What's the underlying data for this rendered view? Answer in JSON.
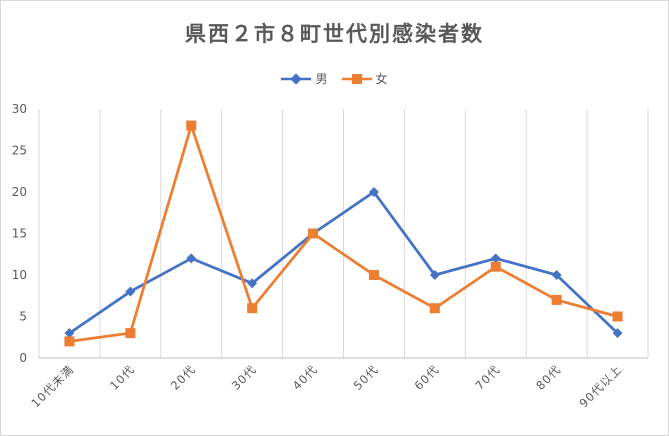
{
  "chart_data": {
    "type": "line",
    "title": "県西２市８町世代別感染者数",
    "categories": [
      "10代未満",
      "10代",
      "20代",
      "30代",
      "40代",
      "50代",
      "60代",
      "70代",
      "80代",
      "90代以上"
    ],
    "series": [
      {
        "name": "男",
        "color": "#4472c4",
        "marker": "diamond",
        "values": [
          3,
          8,
          12,
          9,
          15,
          20,
          10,
          12,
          10,
          3
        ]
      },
      {
        "name": "女",
        "color": "#ed7d31",
        "marker": "square",
        "values": [
          2,
          3,
          28,
          6,
          15,
          10,
          6,
          11,
          7,
          5
        ]
      }
    ],
    "ylim": [
      0,
      30
    ],
    "yticks": [
      0,
      5,
      10,
      15,
      20,
      25,
      30
    ],
    "grid": "vertical",
    "legend": "top"
  }
}
